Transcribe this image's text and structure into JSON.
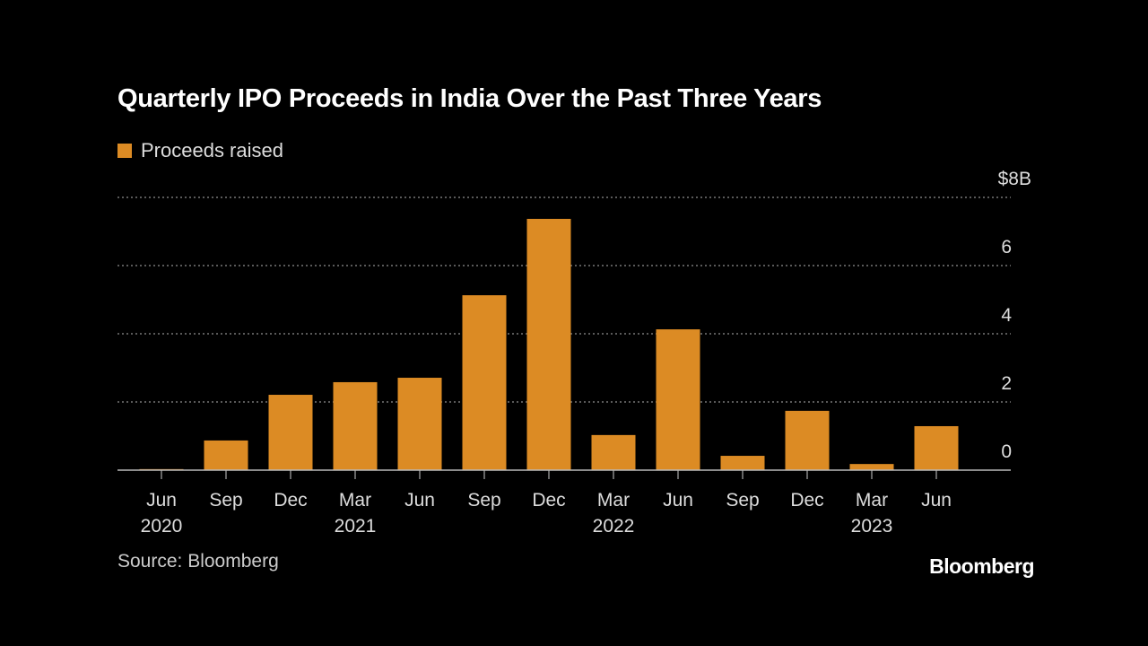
{
  "chart_data": {
    "type": "bar",
    "title": "Quarterly IPO Proceeds in India Over the Past Three Years",
    "legend": [
      {
        "name": "Proceeds raised",
        "color": "#dc8b24"
      }
    ],
    "categories": [
      "Jun 2020",
      "Sep 2020",
      "Dec 2020",
      "Mar 2021",
      "Jun 2021",
      "Sep 2021",
      "Dec 2021",
      "Mar 2022",
      "Jun 2022",
      "Sep 2022",
      "Dec 2022",
      "Mar 2023",
      "Jun 2023"
    ],
    "x_tick_labels": [
      [
        "Jun",
        "2020"
      ],
      [
        "Sep",
        ""
      ],
      [
        "Dec",
        ""
      ],
      [
        "Mar",
        "2021"
      ],
      [
        "Jun",
        ""
      ],
      [
        "Sep",
        ""
      ],
      [
        "Dec",
        ""
      ],
      [
        "Mar",
        "2022"
      ],
      [
        "Jun",
        ""
      ],
      [
        "Sep",
        ""
      ],
      [
        "Dec",
        ""
      ],
      [
        "Mar",
        "2023"
      ],
      [
        "Jun",
        ""
      ]
    ],
    "series": [
      {
        "name": "Proceeds raised",
        "values": [
          0.03,
          0.87,
          2.21,
          2.58,
          2.71,
          5.13,
          7.37,
          1.03,
          4.13,
          0.42,
          1.74,
          0.18,
          1.29
        ]
      }
    ],
    "ylim": [
      0,
      8
    ],
    "y_ticks": [
      0,
      2,
      4,
      6,
      8
    ],
    "y_tick_labels": [
      "0",
      "2",
      "4",
      "6",
      "$8B"
    ],
    "y_axis_position": "right",
    "grid": true,
    "legend_placement": "top-left",
    "bar_color": "#dc8b24"
  },
  "source": "Source: Bloomberg",
  "brand": "Bloomberg"
}
